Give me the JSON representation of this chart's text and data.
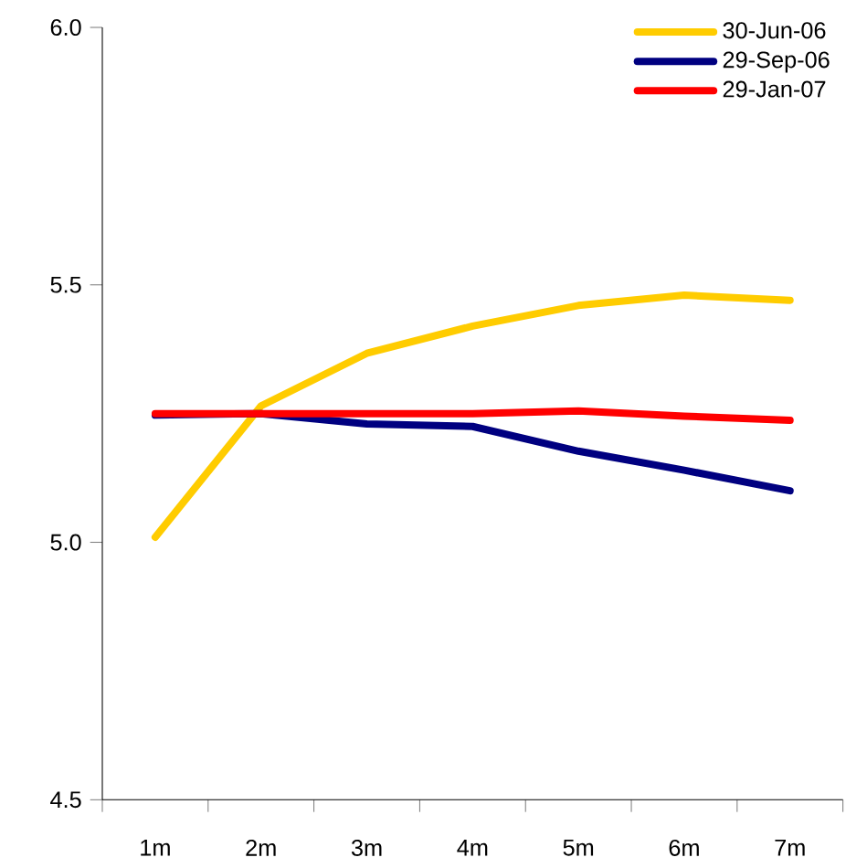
{
  "chart_data": {
    "type": "line",
    "categories": [
      "1m",
      "2m",
      "3m",
      "4m",
      "5m",
      "6m",
      "7m"
    ],
    "series": [
      {
        "name": "30-Jun-06",
        "color": "#ffcc00",
        "values": [
          5.01,
          5.265,
          5.367,
          5.42,
          5.46,
          5.48,
          5.47
        ]
      },
      {
        "name": "29-Sep-06",
        "color": "#000080",
        "values": [
          5.247,
          5.25,
          5.23,
          5.225,
          5.177,
          5.14,
          5.1
        ]
      },
      {
        "name": "29-Jan-07",
        "color": "#ff0000",
        "values": [
          5.25,
          5.25,
          5.25,
          5.25,
          5.255,
          5.245,
          5.237
        ]
      }
    ],
    "ylim": [
      4.5,
      6.0
    ],
    "yticks": [
      {
        "value": 4.5,
        "label": "4.5"
      },
      {
        "value": 5.0,
        "label": "5.0"
      },
      {
        "value": 5.5,
        "label": "5.5"
      },
      {
        "value": 6.0,
        "label": "6.0"
      }
    ],
    "grid": false,
    "legend": "top right",
    "marker": "none",
    "line_style": "solid"
  }
}
